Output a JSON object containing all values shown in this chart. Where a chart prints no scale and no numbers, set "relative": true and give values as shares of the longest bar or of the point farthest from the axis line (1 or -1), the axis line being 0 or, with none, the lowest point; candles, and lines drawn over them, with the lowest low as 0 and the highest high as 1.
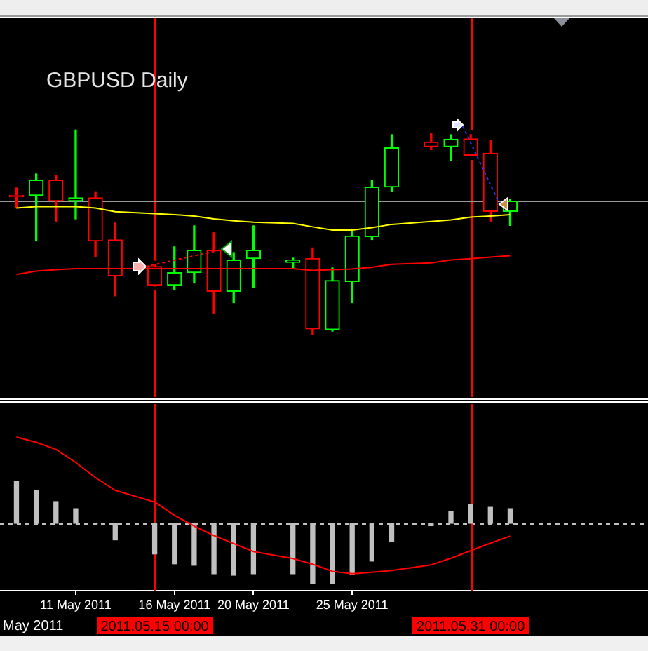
{
  "chart_data": [
    {
      "type": "candlestick",
      "title": "GBPUSD Daily",
      "relative": true,
      "tick_labels": false,
      "x": [
        "2011-05-08",
        "2011-05-09",
        "2011-05-10",
        "2011-05-11",
        "2011-05-12",
        "2011-05-13",
        "2011-05-15",
        "2011-05-16",
        "2011-05-17",
        "2011-05-18",
        "2011-05-19",
        "2011-05-20",
        "2011-05-22",
        "2011-05-23",
        "2011-05-24",
        "2011-05-25",
        "2011-05-26",
        "2011-05-27",
        "2011-05-29",
        "2011-05-30",
        "2011-05-31",
        "2011-06-01",
        "2011-06-02"
      ],
      "xlim": [
        "2011-05-07T04:00",
        "2011-06-08T23:30"
      ],
      "series": [
        {
          "ohlc": [
            [
              0.68,
              0.716,
              0.618,
              0.68
            ],
            [
              0.68,
              0.785,
              0.457,
              0.755
            ],
            [
              0.755,
              0.778,
              0.554,
              0.652
            ],
            [
              0.652,
              1,
              0.565,
              0.668
            ],
            [
              0.668,
              0.698,
              0.382,
              0.457
            ],
            [
              0.462,
              0.545,
              0.188,
              0.286
            ],
            [
              0.332,
              0.339,
              0.236,
              0.24
            ],
            [
              0.24,
              0.428,
              0.217,
              0.302
            ],
            [
              0.302,
              0.531,
              0.251,
              0.412
            ],
            [
              0.412,
              0.497,
              0.103,
              0.21
            ],
            [
              0.21,
              0.4,
              0.155,
              0.364
            ],
            [
              0.371,
              0.531,
              0.229,
              0.412
            ],
            [
              0.352,
              0.373,
              0.325,
              0.363
            ],
            [
              0.371,
              0.423,
              0,
              0.027
            ],
            [
              0.023,
              0.325,
              0.016,
              0.263
            ],
            [
              0.258,
              0.515,
              0.155,
              0.481
            ],
            [
              0.478,
              0.755,
              0.464,
              0.721
            ],
            [
              0.721,
              0.977,
              0.698,
              0.913
            ],
            [
              0.941,
              0.984,
              0.904,
              0.918
            ],
            [
              0.918,
              0.977,
              0.849,
              0.955
            ],
            [
              0.957,
              0.977,
              0.874,
              0.876
            ],
            [
              0.886,
              0.95,
              0.554,
              0.602
            ],
            [
              0.602,
              0.661,
              0.533,
              0.652
            ]
          ],
          "colors": [
            "#ff0000",
            "#00ff00",
            "#ff0000",
            "#00ff00",
            "#ff0000",
            "#ff0000",
            "#ff0000",
            "#00ff00",
            "#00ff00",
            "#ff0000",
            "#00ff00",
            "#00ff00",
            "#00ff00",
            "#ff0000",
            "#00ff00",
            "#00ff00",
            "#00ff00",
            "#00ff00",
            "#ff0000",
            "#00ff00",
            "#ff0000",
            "#ff0000",
            "#00ff00"
          ]
        },
        {
          "type": "line",
          "color": "#ffff00",
          "values": [
            0.618,
            0.625,
            0.625,
            0.625,
            0.618,
            0.6,
            0.591,
            0.586,
            0.579,
            0.565,
            0.556,
            0.549,
            0.543,
            0.526,
            0.51,
            0.51,
            0.522,
            0.538,
            0.552,
            0.56,
            0.574,
            0.579,
            0.586
          ]
        },
        {
          "type": "line",
          "color": "#ff0000",
          "values": [
            0.293,
            0.309,
            0.316,
            0.321,
            0.321,
            0.321,
            0.321,
            0.321,
            0.321,
            0.321,
            0.321,
            0.321,
            0.321,
            0.313,
            0.316,
            0.32,
            0.328,
            0.343,
            0.35,
            0.364,
            0.37,
            0.378,
            0.385
          ]
        }
      ],
      "ref_lines": [
        {
          "axis": "x",
          "value": "2011-05-15",
          "color": "#ff0000"
        },
        {
          "axis": "x",
          "value": "2011-05-31",
          "color": "#ff0000"
        },
        {
          "axis": "y",
          "value": 0.652,
          "color": "#999999"
        }
      ]
    },
    {
      "type": "bar",
      "relative": true,
      "tick_labels": "x",
      "x": [
        "2011-05-08",
        "2011-05-09",
        "2011-05-10",
        "2011-05-11",
        "2011-05-12",
        "2011-05-13",
        "2011-05-15",
        "2011-05-16",
        "2011-05-17",
        "2011-05-18",
        "2011-05-19",
        "2011-05-20",
        "2011-05-22",
        "2011-05-23",
        "2011-05-24",
        "2011-05-25",
        "2011-05-26",
        "2011-05-27",
        "2011-05-29",
        "2011-05-30",
        "2011-05-31",
        "2011-06-01",
        "2011-06-02"
      ],
      "xlim": [
        "2011-05-07T04:00",
        "2011-06-08T23:30"
      ],
      "xticks": [
        {
          "value": "2011-05-11",
          "label": "11 May 2011"
        },
        {
          "value": "2011-05-16",
          "label": "16 May 2011"
        },
        {
          "value": "2011-05-20",
          "label": "20 May 2011"
        },
        {
          "value": "2011-05-25",
          "label": "25 May 2011"
        }
      ],
      "series": [
        {
          "color": "#c0c0c0",
          "values": [
            0.485,
            0.382,
            0.251,
            0.169,
            0,
            -0.192,
            -0.356,
            -0.47,
            -0.487,
            -0.585,
            -0.602,
            -0.585,
            -0.585,
            -0.7,
            -0.7,
            -0.595,
            -0.438,
            -0.208,
            -0.028,
            0.136,
            0.218,
            0.185,
            0.169
          ]
        },
        {
          "type": "line",
          "color": "#ff0000",
          "values": [
            1,
            0.939,
            0.857,
            0.705,
            0.53,
            0.382,
            0.246,
            0.092,
            -0.033,
            -0.143,
            -0.236,
            -0.328,
            -0.41,
            -0.475,
            -0.557,
            -0.585,
            -0.569,
            -0.548,
            -0.482,
            -0.405,
            -0.318,
            -0.23,
            -0.148
          ]
        }
      ],
      "ref_lines": [
        {
          "axis": "y",
          "value": 0,
          "color": "#c0c0c0",
          "line_style": "dashed"
        },
        {
          "axis": "x",
          "value": "2011-05-15",
          "label": "2011.05.15 00:00",
          "color": "#ff0000"
        },
        {
          "axis": "x",
          "value": "2011-05-31",
          "label": "2011.05.31 00:00",
          "color": "#ff0000"
        }
      ],
      "annotations": [
        "May 2011"
      ]
    }
  ]
}
